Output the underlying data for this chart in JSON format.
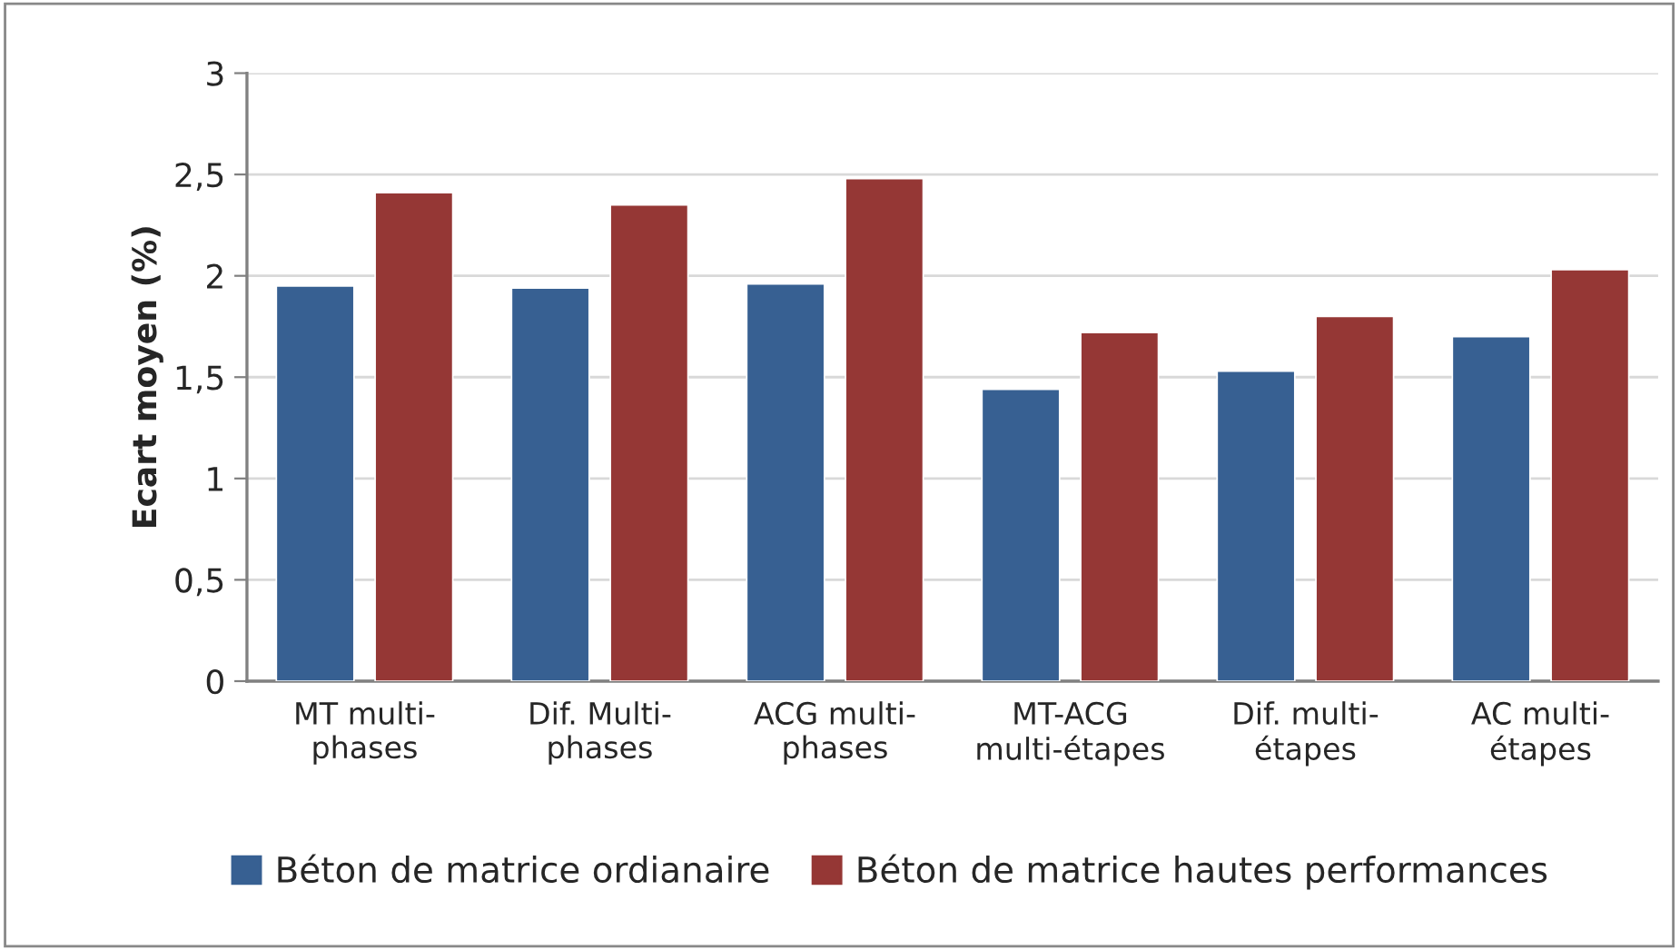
{
  "chart_data": {
    "type": "bar",
    "ylabel": "Ecart moyen (%)",
    "categories": [
      "MT multi-\nphases",
      "Dif. Multi-\nphases",
      "ACG multi-\nphases",
      "MT-ACG\nmulti-étapes",
      "Dif. multi-\nétapes",
      "AC multi-\nétapes"
    ],
    "series": [
      {
        "name": "Béton de matrice ordianaire",
        "color": "#376092",
        "values": [
          1.95,
          1.94,
          1.96,
          1.44,
          1.53,
          1.7
        ]
      },
      {
        "name": "Béton de matrice hautes performances",
        "color": "#953735",
        "values": [
          2.41,
          2.35,
          2.48,
          1.72,
          1.8,
          2.03
        ]
      }
    ],
    "ylim": [
      0,
      3
    ],
    "yticks": [
      0,
      {
        "value": 0.5,
        "label": "0,5"
      },
      1,
      {
        "value": 1.5,
        "label": "1,5"
      },
      2,
      {
        "value": 2.5,
        "label": "2,5"
      },
      3
    ],
    "grid": "y",
    "legend": "bottom"
  }
}
